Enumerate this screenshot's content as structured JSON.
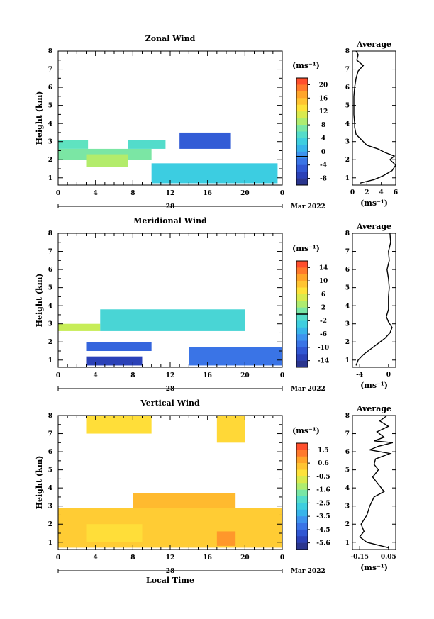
{
  "figure": {
    "x_title": "Local Time",
    "date_day": "28",
    "date_month": "Mar 2022"
  },
  "chart_data": [
    {
      "type": "heatmap",
      "title": "Zonal Wind",
      "xlabel": "Local Time",
      "ylabel": "Height (km)",
      "x_ticks": [
        "0",
        "4",
        "8",
        "12",
        "16",
        "20",
        "0"
      ],
      "y_ticks": [
        "1",
        "2",
        "3",
        "4",
        "5",
        "6",
        "7",
        "8"
      ],
      "xlim": [
        0,
        24
      ],
      "ylim": [
        0.6,
        8.0
      ],
      "colorbar": {
        "unit": "(ms⁻¹)",
        "min": -8,
        "max": 22,
        "ticks": [
          "20",
          "16",
          "12",
          "8",
          "4",
          "0",
          "-4",
          "-8"
        ],
        "zero_line": 0
      },
      "regions": [
        {
          "x0": 0.0,
          "x1": 3.2,
          "y0": 2.6,
          "y1": 3.1,
          "value": 7
        },
        {
          "x0": 0.0,
          "x1": 10.0,
          "y0": 2.0,
          "y1": 2.6,
          "value": 8
        },
        {
          "x0": 3.0,
          "x1": 7.5,
          "y0": 1.6,
          "y1": 2.3,
          "value": 10
        },
        {
          "x0": 7.5,
          "x1": 11.5,
          "y0": 2.6,
          "y1": 3.1,
          "value": 6
        },
        {
          "x0": 10.0,
          "x1": 23.5,
          "y0": 0.7,
          "y1": 1.8,
          "value": 4
        },
        {
          "x0": 13.0,
          "x1": 18.5,
          "y0": 2.6,
          "y1": 3.5,
          "value": -3
        }
      ],
      "average_profile": {
        "title": "Average",
        "xlim": [
          0,
          6
        ],
        "x_ticks": [
          "0",
          "2",
          "4",
          "6"
        ],
        "xlabel": "(ms⁻¹)",
        "height": [
          0.7,
          0.9,
          1.1,
          1.4,
          1.7,
          2.0,
          2.2,
          2.4,
          2.6,
          2.8,
          3.0,
          3.2,
          3.4,
          3.6,
          3.8,
          4.0,
          4.5,
          5.0,
          5.5,
          6.0,
          6.5,
          6.9,
          7.2,
          7.5,
          7.8,
          8.0
        ],
        "value": [
          1.0,
          3.0,
          4.2,
          5.5,
          6.0,
          5.2,
          5.8,
          4.5,
          3.5,
          2.0,
          1.5,
          1.0,
          0.5,
          0.4,
          0.3,
          0.3,
          0.2,
          0.2,
          0.2,
          0.3,
          0.5,
          0.8,
          1.5,
          0.6,
          0.8,
          0.5
        ]
      }
    },
    {
      "type": "heatmap",
      "title": "Meridional Wind",
      "xlabel": "Local Time",
      "ylabel": "Height (km)",
      "x_ticks": [
        "0",
        "4",
        "8",
        "12",
        "16",
        "20",
        "0"
      ],
      "y_ticks": [
        "1",
        "2",
        "3",
        "4",
        "5",
        "6",
        "7",
        "8"
      ],
      "xlim": [
        0,
        24
      ],
      "ylim": [
        0.6,
        8.0
      ],
      "colorbar": {
        "unit": "(ms⁻¹)",
        "min": -16,
        "max": 16,
        "ticks": [
          "14",
          "10",
          "6",
          "2",
          "-2",
          "-6",
          "-10",
          "-14"
        ],
        "zero_line": 0
      },
      "regions": [
        {
          "x0": 0.0,
          "x1": 4.5,
          "y0": 2.6,
          "y1": 3.0,
          "value": 4
        },
        {
          "x0": 4.5,
          "x1": 20.0,
          "y0": 2.6,
          "y1": 3.8,
          "value": -2
        },
        {
          "x0": 3.0,
          "x1": 10.0,
          "y0": 1.5,
          "y1": 2.0,
          "value": -10
        },
        {
          "x0": 3.0,
          "x1": 9.0,
          "y0": 0.7,
          "y1": 1.2,
          "value": -13
        },
        {
          "x0": 14.0,
          "x1": 24.0,
          "y0": 0.7,
          "y1": 1.7,
          "value": -9
        }
      ],
      "average_profile": {
        "title": "Average",
        "xlim": [
          -5,
          1
        ],
        "x_ticks": [
          "-4",
          "0"
        ],
        "xlabel": "(ms⁻¹)",
        "height": [
          0.7,
          1.0,
          1.3,
          1.6,
          1.9,
          2.2,
          2.5,
          2.8,
          3.1,
          3.4,
          3.8,
          4.5,
          5.0,
          5.5,
          6.0,
          6.5,
          7.0,
          7.5,
          8.0
        ],
        "value": [
          -4.5,
          -4.2,
          -3.5,
          -2.5,
          -1.5,
          -0.5,
          0.2,
          0.5,
          0.0,
          -0.3,
          0.0,
          0.0,
          0.1,
          0.0,
          -0.2,
          0.1,
          0.0,
          0.3,
          0.2
        ]
      }
    },
    {
      "type": "heatmap",
      "title": "Vertical Wind",
      "xlabel": "Local Time",
      "ylabel": "Height (km)",
      "x_ticks": [
        "0",
        "4",
        "8",
        "12",
        "16",
        "20",
        "0"
      ],
      "y_ticks": [
        "1",
        "2",
        "3",
        "4",
        "5",
        "6",
        "7",
        "8"
      ],
      "xlim": [
        0,
        24
      ],
      "ylim": [
        0.6,
        8.0
      ],
      "colorbar": {
        "unit": "(ms⁻¹)",
        "min": -6.1,
        "max": 2.0,
        "ticks": [
          "1.5",
          "0.6",
          "-0.5",
          "-1.6",
          "-2.5",
          "-3.5",
          "-4.5",
          "-5.6"
        ],
        "zero_line": null
      },
      "regions": [
        {
          "x0": 0.0,
          "x1": 24.0,
          "y0": 0.7,
          "y1": 2.9,
          "value": 0.1
        },
        {
          "x0": 8.0,
          "x1": 19.0,
          "y0": 2.9,
          "y1": 3.7,
          "value": 0.4
        },
        {
          "x0": 3.0,
          "x1": 9.0,
          "y0": 1.0,
          "y1": 2.0,
          "value": -0.2
        },
        {
          "x0": 17.0,
          "x1": 19.0,
          "y0": 0.8,
          "y1": 1.6,
          "value": 0.9
        },
        {
          "x0": 3.0,
          "x1": 10.0,
          "y0": 7.0,
          "y1": 8.0,
          "value": -0.2
        },
        {
          "x0": 17.0,
          "x1": 20.0,
          "y0": 6.5,
          "y1": 8.0,
          "value": -0.1
        }
      ],
      "average_profile": {
        "title": "Average",
        "xlim": [
          -0.2,
          0.1
        ],
        "x_ticks": [
          "-0.15",
          "0.05"
        ],
        "xlabel": "(ms⁻¹)",
        "height": [
          0.7,
          1.0,
          1.3,
          1.6,
          2.0,
          2.5,
          3.0,
          3.5,
          3.8,
          4.2,
          4.6,
          5.0,
          5.3,
          5.6,
          5.9,
          6.1,
          6.3,
          6.5,
          6.6,
          6.8,
          7.1,
          7.4,
          7.7,
          8.0
        ],
        "value": [
          0.05,
          -0.1,
          -0.15,
          -0.12,
          -0.14,
          -0.1,
          -0.08,
          -0.05,
          0.02,
          -0.02,
          -0.06,
          -0.02,
          -0.05,
          -0.04,
          0.06,
          -0.08,
          -0.02,
          0.08,
          -0.05,
          0.02,
          -0.03,
          0.05,
          -0.01,
          0.04
        ]
      }
    }
  ]
}
